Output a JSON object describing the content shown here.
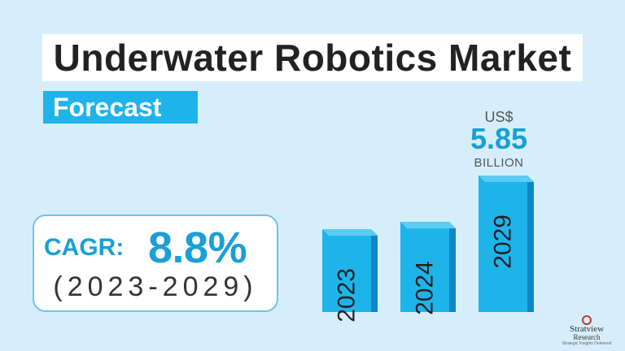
{
  "title": "Underwater Robotics Market",
  "subtitle": "Forecast",
  "cagr": {
    "label": "CAGR:",
    "value": "8.8%",
    "period": "(2023-2029)"
  },
  "annotation": {
    "currency": "US$",
    "value": "5.85",
    "unit": "BILLION"
  },
  "logo": {
    "name_top": "Stratview",
    "name_bottom": "Research",
    "tagline": "Strategic Insights Delivered"
  },
  "colors": {
    "background": "#d6eefb",
    "accent": "#1eb4ea",
    "bar_front": "#1eb4ea",
    "bar_side": "#0f86c6",
    "bar_top": "#5ccdf2"
  },
  "chart_data": {
    "type": "bar",
    "categories": [
      "2023",
      "2024",
      "2029"
    ],
    "values": [
      3.55,
      3.86,
      5.85
    ],
    "title": "",
    "xlabel": "",
    "ylabel": "",
    "ylim": [
      0,
      5.85
    ],
    "grid": false,
    "category_labels_rotated": true,
    "labelled_value": {
      "category": "2029",
      "value": 5.85,
      "unit": "US$ BILLION"
    }
  }
}
